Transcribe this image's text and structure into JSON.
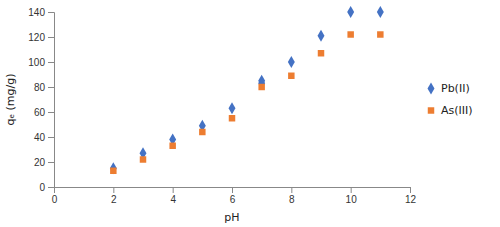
{
  "chart_data": {
    "type": "scatter",
    "xlabel": "pH",
    "ylabel": "qₑ (mg/g)",
    "xlim": [
      0,
      12
    ],
    "ylim": [
      0,
      140
    ],
    "xticks": [
      0,
      2,
      4,
      6,
      8,
      10,
      12
    ],
    "yticks": [
      0,
      20,
      40,
      60,
      80,
      100,
      120,
      140
    ],
    "grid": false,
    "legend": "right",
    "series": [
      {
        "name": "Pb(II)",
        "color": "#4472c4",
        "marker": "diamond",
        "x": [
          2,
          3,
          4,
          5,
          6,
          7,
          7,
          8,
          9,
          10,
          11
        ],
        "values": [
          15,
          27,
          38,
          49,
          63,
          83,
          85,
          100,
          121,
          140,
          140
        ]
      },
      {
        "name": "As(III)",
        "color": "#ed7d31",
        "marker": "square",
        "x": [
          2,
          3,
          4,
          5,
          6,
          7,
          8,
          9,
          10,
          11
        ],
        "values": [
          13,
          22,
          33,
          44,
          55,
          80,
          89,
          107,
          122,
          122
        ]
      }
    ]
  }
}
